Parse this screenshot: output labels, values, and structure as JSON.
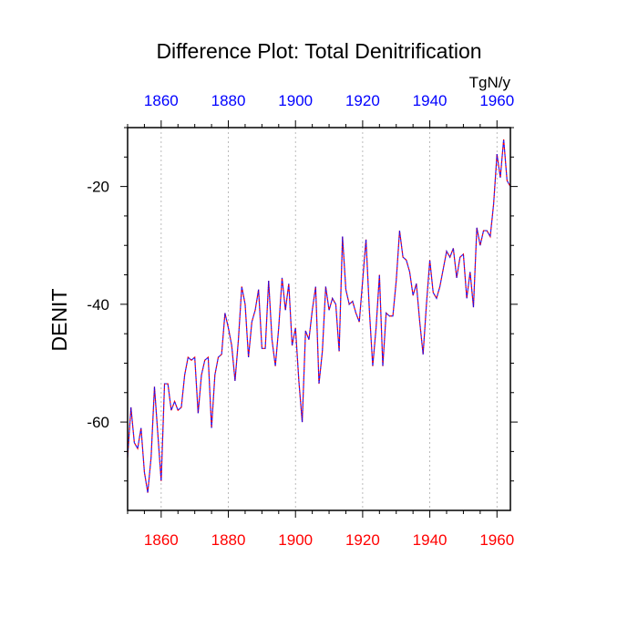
{
  "chart_data": {
    "type": "line",
    "title": "Difference Plot: Total Denitrification",
    "units": "TgN/y",
    "ylabel": "DENIT",
    "xlim": [
      1850,
      1964
    ],
    "ylim": [
      -75,
      -10
    ],
    "x_ticks": [
      1860,
      1880,
      1900,
      1920,
      1940,
      1960
    ],
    "x_tick_labels": [
      "1860",
      "1880",
      "1900",
      "1920",
      "1940",
      "1960"
    ],
    "y_ticks": [
      -60,
      -40,
      -20
    ],
    "y_tick_labels": [
      "-60",
      "-40",
      "-20"
    ],
    "top_axis_color": "#0000ff",
    "bottom_axis_color": "#ff0000",
    "grid": "vertical dotted at major x ticks",
    "series": [
      {
        "color": "#ff0000",
        "overlay_color": "#0000ff",
        "line_style": "dashed",
        "x": [
          1850,
          1851,
          1852,
          1853,
          1854,
          1855,
          1856,
          1857,
          1858,
          1859,
          1860,
          1861,
          1862,
          1863,
          1864,
          1865,
          1866,
          1867,
          1868,
          1869,
          1870,
          1871,
          1872,
          1873,
          1874,
          1875,
          1876,
          1877,
          1878,
          1879,
          1880,
          1881,
          1882,
          1883,
          1884,
          1885,
          1886,
          1887,
          1888,
          1889,
          1890,
          1891,
          1892,
          1893,
          1894,
          1895,
          1896,
          1897,
          1898,
          1899,
          1900,
          1901,
          1902,
          1903,
          1904,
          1905,
          1906,
          1907,
          1908,
          1909,
          1910,
          1911,
          1912,
          1913,
          1914,
          1915,
          1916,
          1917,
          1918,
          1919,
          1920,
          1921,
          1922,
          1923,
          1924,
          1925,
          1926,
          1927,
          1928,
          1929,
          1930,
          1931,
          1932,
          1933,
          1934,
          1935,
          1936,
          1937,
          1938,
          1939,
          1940,
          1941,
          1942,
          1943,
          1944,
          1945,
          1946,
          1947,
          1948,
          1949,
          1950,
          1951,
          1952,
          1953,
          1954,
          1955,
          1956,
          1957,
          1958,
          1959,
          1960,
          1961,
          1962,
          1963,
          1964
        ],
        "values": [
          -66,
          -57.5,
          -63.5,
          -64.5,
          -61,
          -68.5,
          -72,
          -66,
          -54,
          -62,
          -70,
          -53.5,
          -53.5,
          -58,
          -56.5,
          -58,
          -57.5,
          -52,
          -49,
          -49.5,
          -49,
          -58.5,
          -52,
          -49.5,
          -49,
          -61,
          -52,
          -49,
          -48.5,
          -41.5,
          -44,
          -47,
          -53,
          -46,
          -37,
          -40,
          -49,
          -43,
          -41,
          -37.5,
          -47.5,
          -47.5,
          -36,
          -46,
          -50.5,
          -44,
          -35.5,
          -41,
          -36.5,
          -47,
          -44,
          -53,
          -60,
          -44.5,
          -46,
          -41,
          -37,
          -53.5,
          -48,
          -37,
          -41,
          -39,
          -40,
          -48,
          -28.5,
          -37.5,
          -40,
          -39.5,
          -41.5,
          -43,
          -36,
          -29,
          -41,
          -50.5,
          -44,
          -35,
          -50.5,
          -41.5,
          -42,
          -42,
          -36,
          -27.5,
          -32,
          -32.5,
          -34.5,
          -38.5,
          -36.5,
          -43,
          -48.5,
          -40,
          -32.5,
          -38,
          -39,
          -37,
          -34,
          -31,
          -32,
          -30.5,
          -35.5,
          -32,
          -31.5,
          -39,
          -34.5,
          -40.5,
          -27,
          -30,
          -27.5,
          -27.5,
          -28.5,
          -23,
          -14.5,
          -18.5,
          -12,
          -19,
          -20
        ]
      }
    ]
  }
}
